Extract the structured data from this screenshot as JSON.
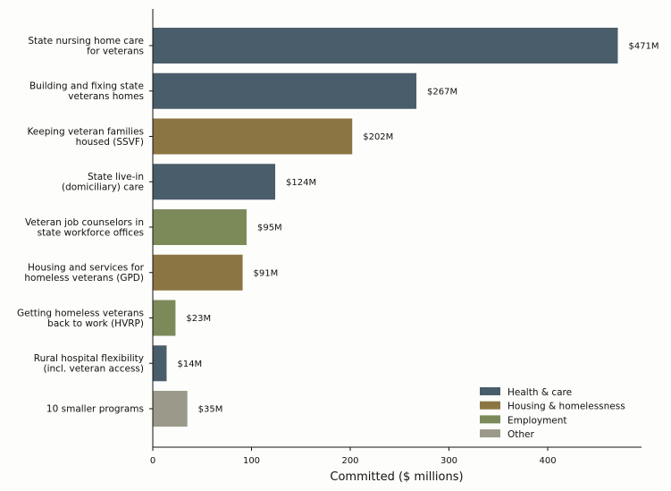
{
  "chart_data": {
    "type": "bar",
    "orientation": "horizontal",
    "xlabel": "Committed ($ millions)",
    "ylabel": "",
    "xlim": [
      0,
      495
    ],
    "xticks": [
      0,
      100,
      200,
      300,
      400
    ],
    "grid": false,
    "legend_position": "bottom-right",
    "groups": [
      {
        "name": "Health & care",
        "color": "#4a5d6b"
      },
      {
        "name": "Housing & homelessness",
        "color": "#8b7543"
      },
      {
        "name": "Employment",
        "color": "#7c8a5a"
      },
      {
        "name": "Other",
        "color": "#9b9a8a"
      }
    ],
    "bars": [
      {
        "label": [
          "State nursing home care",
          "for veterans"
        ],
        "value": 471,
        "value_label": "$471M",
        "group": "Health & care"
      },
      {
        "label": [
          "Building and fixing state",
          "veterans homes"
        ],
        "value": 267,
        "value_label": "$267M",
        "group": "Health & care"
      },
      {
        "label": [
          "Keeping veteran families",
          "housed (SSVF)"
        ],
        "value": 202,
        "value_label": "$202M",
        "group": "Housing & homelessness"
      },
      {
        "label": [
          "State live-in",
          "(domiciliary) care"
        ],
        "value": 124,
        "value_label": "$124M",
        "group": "Health & care"
      },
      {
        "label": [
          "Veteran job counselors in",
          "state workforce offices"
        ],
        "value": 95,
        "value_label": "$95M",
        "group": "Employment"
      },
      {
        "label": [
          "Housing and services for",
          "homeless veterans (GPD)"
        ],
        "value": 91,
        "value_label": "$91M",
        "group": "Housing & homelessness"
      },
      {
        "label": [
          "Getting homeless veterans",
          "back to work (HVRP)"
        ],
        "value": 23,
        "value_label": "$23M",
        "group": "Employment"
      },
      {
        "label": [
          "Rural hospital flexibility",
          "(incl. veteran access)"
        ],
        "value": 14,
        "value_label": "$14M",
        "group": "Health & care"
      },
      {
        "label": [
          "10 smaller programs"
        ],
        "value": 35,
        "value_label": "$35M",
        "group": "Other"
      }
    ]
  }
}
